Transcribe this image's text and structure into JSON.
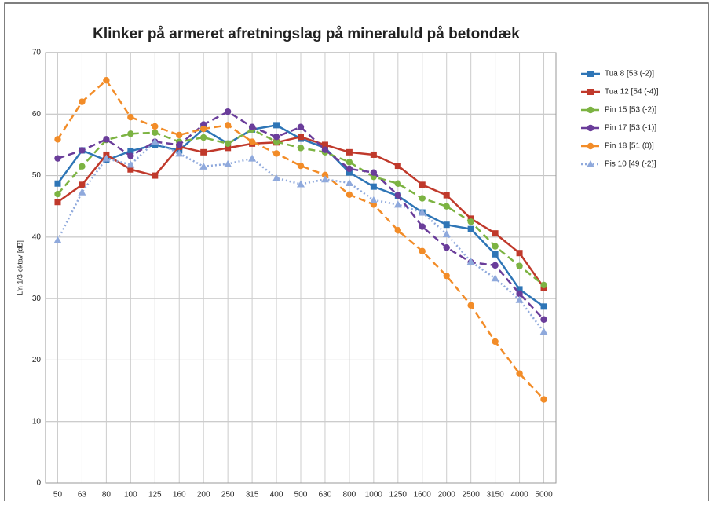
{
  "chart_data": {
    "type": "line",
    "title": "Klinker på armeret afretningslag på mineraluld på betondæk",
    "y_label": "L'n 1/3-oktav [dB]",
    "categories": [
      "50",
      "63",
      "80",
      "100",
      "125",
      "160",
      "200",
      "250",
      "315",
      "400",
      "500",
      "630",
      "800",
      "1000",
      "1250",
      "1600",
      "2000",
      "2500",
      "3150",
      "4000",
      "5000"
    ],
    "ylim": [
      0,
      70
    ],
    "yticks": [
      0,
      10,
      20,
      30,
      40,
      50,
      60,
      70
    ],
    "grid": true,
    "legend": "right",
    "series": [
      {
        "name": "Tua 8 [53 (-2)]",
        "color": "#2e75b6",
        "dash": "solid",
        "marker": "square",
        "values": [
          48.7,
          54.1,
          52.5,
          54,
          55,
          54.1,
          57.6,
          55.2,
          57.5,
          58.2,
          56,
          54.5,
          50.5,
          48.2,
          46.7,
          44,
          42,
          41.3,
          37.2,
          31.5,
          28.7
        ]
      },
      {
        "name": "Tua 12 [54 (-4)]",
        "color": "#c0392b",
        "dash": "solid",
        "marker": "square",
        "values": [
          45.7,
          48.5,
          53.4,
          51,
          50,
          54.7,
          53.8,
          54.5,
          55.2,
          55.4,
          56.3,
          55,
          53.8,
          53.4,
          51.6,
          48.5,
          46.8,
          43,
          40.6,
          37.4,
          31.8
        ]
      },
      {
        "name": "Pin 15 [53 (-2)]",
        "color": "#7cb342",
        "dash": "dashed",
        "marker": "circle",
        "values": [
          47,
          51.5,
          55.8,
          56.8,
          57,
          55.5,
          56.2,
          55.2,
          57.5,
          55.5,
          54.5,
          53.8,
          52.2,
          49.8,
          48.7,
          46.3,
          45,
          42.5,
          38.5,
          35.3,
          32.2
        ]
      },
      {
        "name": "Pin 17 [53 (-1)]",
        "color": "#6a3d9a",
        "dash": "dashed",
        "marker": "circle",
        "values": [
          52.8,
          54.1,
          55.9,
          53.2,
          55.5,
          55,
          58.3,
          60.4,
          57.9,
          56.3,
          57.9,
          54.2,
          51.1,
          50.5,
          46.8,
          41.7,
          38.3,
          35.9,
          35.4,
          30.8,
          26.6
        ]
      },
      {
        "name": "Pin 18 [51 (0)]",
        "color": "#f28c28",
        "dash": "dashed",
        "marker": "circle",
        "values": [
          55.9,
          62,
          65.5,
          59.5,
          58,
          56.6,
          57.6,
          58.2,
          55.5,
          53.6,
          51.6,
          50.1,
          46.9,
          45.3,
          41.1,
          37.7,
          33.7,
          28.9,
          23,
          17.8,
          13.6
        ]
      },
      {
        "name": "Pis 10 [49 (-2)]",
        "color": "#8fa9dc",
        "dash": "dotted",
        "marker": "triangle",
        "values": [
          39.5,
          47.3,
          52.8,
          51.8,
          55.5,
          53.6,
          51.5,
          51.9,
          52.8,
          49.6,
          48.6,
          49.4,
          48.8,
          46,
          45.3,
          44,
          40.5,
          36,
          33.3,
          29.8,
          24.6
        ]
      }
    ]
  }
}
